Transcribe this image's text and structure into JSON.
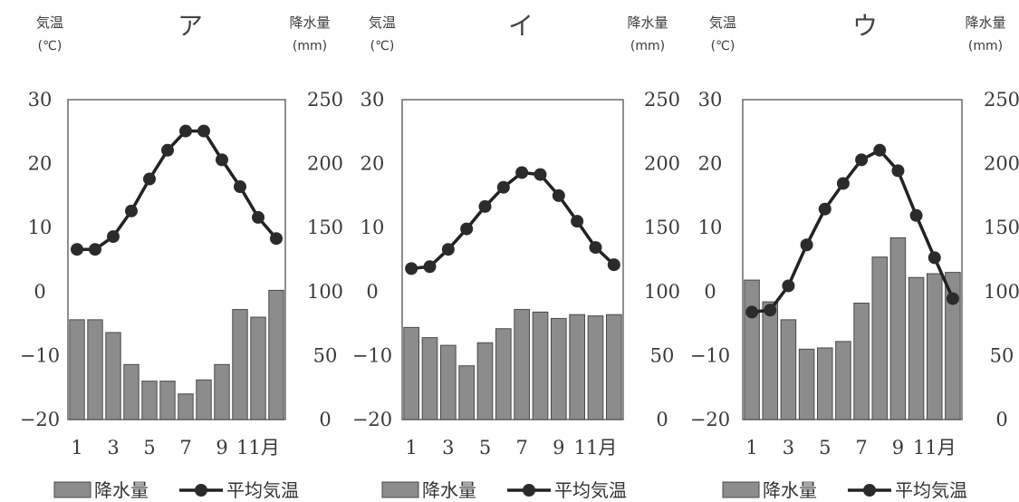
{
  "chart_data": [
    {
      "type": "bar+line",
      "title": "ア",
      "left_axis_label": "気温",
      "left_axis_unit": "(℃)",
      "right_axis_label": "降水量",
      "right_axis_unit": "(mm)",
      "x": [
        1,
        2,
        3,
        4,
        5,
        6,
        7,
        8,
        9,
        10,
        11,
        12
      ],
      "x_tick_labels": [
        "1",
        "",
        "3",
        "",
        "5",
        "",
        "7",
        "",
        "9",
        "",
        "11月",
        ""
      ],
      "temperature_ylim": [
        -20,
        30
      ],
      "temperature_ticks": [
        "30",
        "20",
        "10",
        "0",
        "−10",
        "−20"
      ],
      "precipitation_ylim": [
        0,
        250
      ],
      "precipitation_ticks": [
        "250",
        "200",
        "150",
        "100",
        "50",
        "0"
      ],
      "series": [
        {
          "name": "降水量",
          "kind": "bar",
          "axis": "right",
          "color": "#8c8c8c",
          "values": [
            78,
            78,
            68,
            43,
            30,
            30,
            20,
            31,
            43,
            86,
            80,
            101
          ]
        },
        {
          "name": "平均気温",
          "kind": "line",
          "axis": "left",
          "color": "#222222",
          "values": [
            6.6,
            6.6,
            8.6,
            12.6,
            17.6,
            22.1,
            25.1,
            25.1,
            20.6,
            16.4,
            11.6,
            8.3
          ]
        }
      ],
      "legend": [
        {
          "label": "降水量",
          "kind": "bar"
        },
        {
          "label": "平均気温",
          "kind": "line"
        }
      ]
    },
    {
      "type": "bar+line",
      "title": "イ",
      "left_axis_label": "気温",
      "left_axis_unit": "(℃)",
      "right_axis_label": "降水量",
      "right_axis_unit": "(mm)",
      "x": [
        1,
        2,
        3,
        4,
        5,
        6,
        7,
        8,
        9,
        10,
        11,
        12
      ],
      "x_tick_labels": [
        "1",
        "",
        "3",
        "",
        "5",
        "",
        "7",
        "",
        "9",
        "",
        "11月",
        ""
      ],
      "temperature_ylim": [
        -20,
        30
      ],
      "temperature_ticks": [
        "30",
        "20",
        "10",
        "0",
        "−10",
        "−20"
      ],
      "precipitation_ylim": [
        0,
        250
      ],
      "precipitation_ticks": [
        "250",
        "200",
        "150",
        "100",
        "50",
        "0"
      ],
      "series": [
        {
          "name": "降水量",
          "kind": "bar",
          "axis": "right",
          "color": "#8c8c8c",
          "values": [
            72,
            64,
            58,
            42,
            60,
            71,
            86,
            84,
            79,
            82,
            81,
            82
          ]
        },
        {
          "name": "平均気温",
          "kind": "line",
          "axis": "left",
          "color": "#222222",
          "values": [
            3.6,
            3.9,
            6.6,
            9.8,
            13.3,
            16.3,
            18.6,
            18.3,
            15.0,
            11.0,
            6.9,
            4.2
          ]
        }
      ],
      "legend": [
        {
          "label": "降水量",
          "kind": "bar"
        },
        {
          "label": "平均気温",
          "kind": "line"
        }
      ]
    },
    {
      "type": "bar+line",
      "title": "ウ",
      "left_axis_label": "気温",
      "left_axis_unit": "(℃)",
      "right_axis_label": "降水量",
      "right_axis_unit": "(mm)",
      "x": [
        1,
        2,
        3,
        4,
        5,
        6,
        7,
        8,
        9,
        10,
        11,
        12
      ],
      "x_tick_labels": [
        "1",
        "",
        "3",
        "",
        "5",
        "",
        "7",
        "",
        "9",
        "",
        "11月",
        ""
      ],
      "temperature_ylim": [
        -20,
        30
      ],
      "temperature_ticks": [
        "30",
        "20",
        "10",
        "0",
        "−10",
        "−20"
      ],
      "precipitation_ylim": [
        0,
        250
      ],
      "precipitation_ticks": [
        "250",
        "200",
        "150",
        "100",
        "50",
        "0"
      ],
      "series": [
        {
          "name": "降水量",
          "kind": "bar",
          "axis": "right",
          "color": "#8c8c8c",
          "values": [
            109,
            92,
            78,
            55,
            56,
            61,
            91,
            127,
            142,
            111,
            114,
            115
          ]
        },
        {
          "name": "平均気温",
          "kind": "line",
          "axis": "left",
          "color": "#222222",
          "values": [
            -3.2,
            -2.9,
            0.9,
            7.3,
            12.9,
            16.9,
            20.6,
            22.1,
            18.9,
            11.9,
            5.3,
            -1.1
          ]
        }
      ],
      "legend": [
        {
          "label": "降水量",
          "kind": "bar"
        },
        {
          "label": "平均気温",
          "kind": "line"
        }
      ]
    }
  ]
}
